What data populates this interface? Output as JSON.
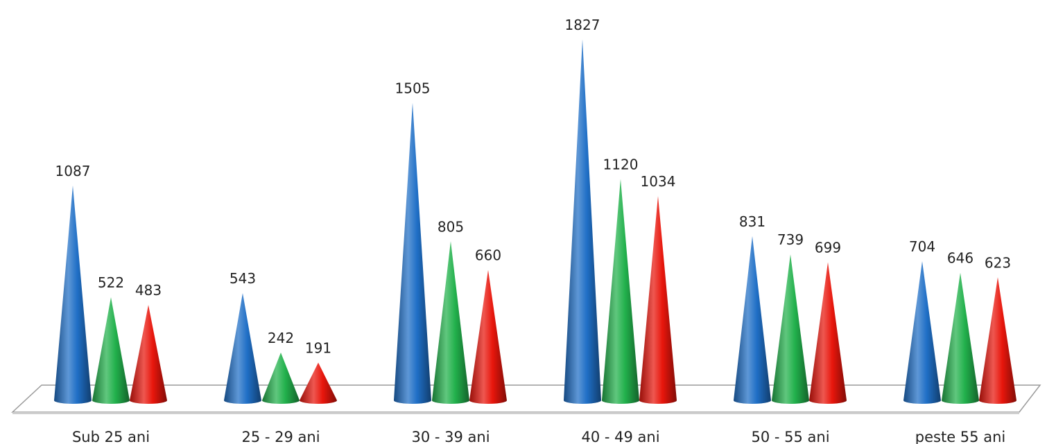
{
  "chart_data": {
    "type": "bar",
    "style": "3d-cone",
    "categories": [
      "Sub 25 ani",
      "25 - 29 ani",
      "30 - 39 ani",
      "40 - 49 ani",
      "50 - 55 ani",
      "peste 55 ani"
    ],
    "series": [
      {
        "color": "#1f6fc6",
        "values": [
          1087,
          543,
          1505,
          1827,
          831,
          704
        ]
      },
      {
        "color": "#22b14c",
        "values": [
          522,
          242,
          805,
          1120,
          739,
          646
        ]
      },
      {
        "color": "#e8160c",
        "values": [
          483,
          191,
          660,
          1034,
          699,
          623
        ]
      }
    ],
    "ylim": [
      0,
      1827
    ],
    "grid": false,
    "legend": "none",
    "data_labels": true
  }
}
